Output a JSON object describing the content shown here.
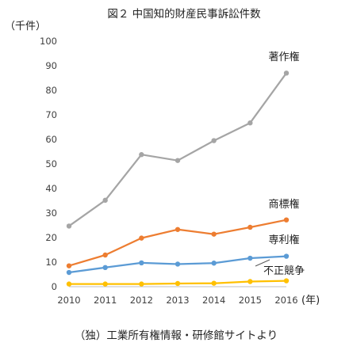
{
  "chart_data": {
    "type": "line",
    "title": "図２ 中国知的財産民事訴訟件数",
    "y_unit_label": "（千件）",
    "x_unit_label": "(年)",
    "source": "（独）工業所有権情報・研修館サイトより",
    "x": [
      "2010",
      "2011",
      "2012",
      "2013",
      "2014",
      "2015",
      "2016"
    ],
    "ylim": [
      0,
      100
    ],
    "yticks": [
      0,
      10,
      20,
      30,
      40,
      50,
      60,
      70,
      80,
      90,
      100
    ],
    "grid": false,
    "series": [
      {
        "name": "著作権",
        "color": "#a5a5a5",
        "values": [
          24.7,
          35.2,
          53.8,
          51.4,
          59.5,
          66.7,
          87.0
        ]
      },
      {
        "name": "商標権",
        "color": "#ed7d31",
        "values": [
          8.5,
          12.9,
          19.8,
          23.3,
          21.4,
          24.2,
          27.2
        ]
      },
      {
        "name": "専利権",
        "color": "#5b9bd5",
        "values": [
          5.8,
          7.8,
          9.7,
          9.2,
          9.6,
          11.6,
          12.4
        ]
      },
      {
        "name": "不正競争",
        "color": "#ffc000",
        "values": [
          1.1,
          1.1,
          1.1,
          1.3,
          1.4,
          2.1,
          2.4
        ]
      }
    ]
  }
}
